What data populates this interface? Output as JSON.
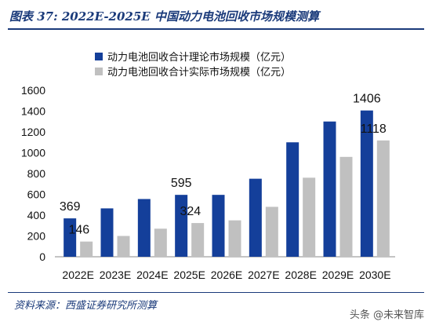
{
  "figure": {
    "title": "图表 37: 2022E-2025E 中国动力电池回收市场规模测算",
    "top_fragment": "",
    "source": "资料来源：西盛证券研究所测算",
    "watermark": "头条 @未来智库"
  },
  "colors": {
    "theoretical": "#143f9a",
    "actual": "#c0c0c0",
    "title": "#1a3a7a"
  },
  "chart_data": {
    "type": "bar",
    "title": "",
    "xlabel": "",
    "ylabel": "",
    "categories": [
      "2022E",
      "2023E",
      "2024E",
      "2025E",
      "2026E",
      "2027E",
      "2028E",
      "2029E",
      "2030E"
    ],
    "series": [
      {
        "name": "动力电池回收合计理论市场规模（亿元）",
        "values": [
          369,
          465,
          555,
          595,
          595,
          750,
          1100,
          1300,
          1406
        ]
      },
      {
        "name": "动力电池回收合计实际市场规模（亿元）",
        "values": [
          146,
          200,
          270,
          324,
          350,
          480,
          760,
          960,
          1118
        ]
      }
    ],
    "data_labels": [
      {
        "series": 0,
        "index": 0,
        "text": "369"
      },
      {
        "series": 1,
        "index": 0,
        "text": "146"
      },
      {
        "series": 0,
        "index": 3,
        "text": "595"
      },
      {
        "series": 1,
        "index": 3,
        "text": "324"
      },
      {
        "series": 0,
        "index": 8,
        "text": "1406"
      },
      {
        "series": 1,
        "index": 8,
        "text": "1118"
      }
    ],
    "ylim": [
      0,
      1600
    ],
    "yticks": [
      0,
      200,
      400,
      600,
      800,
      1000,
      1200,
      1400,
      1600
    ],
    "grid": false,
    "legend": "top-center"
  }
}
